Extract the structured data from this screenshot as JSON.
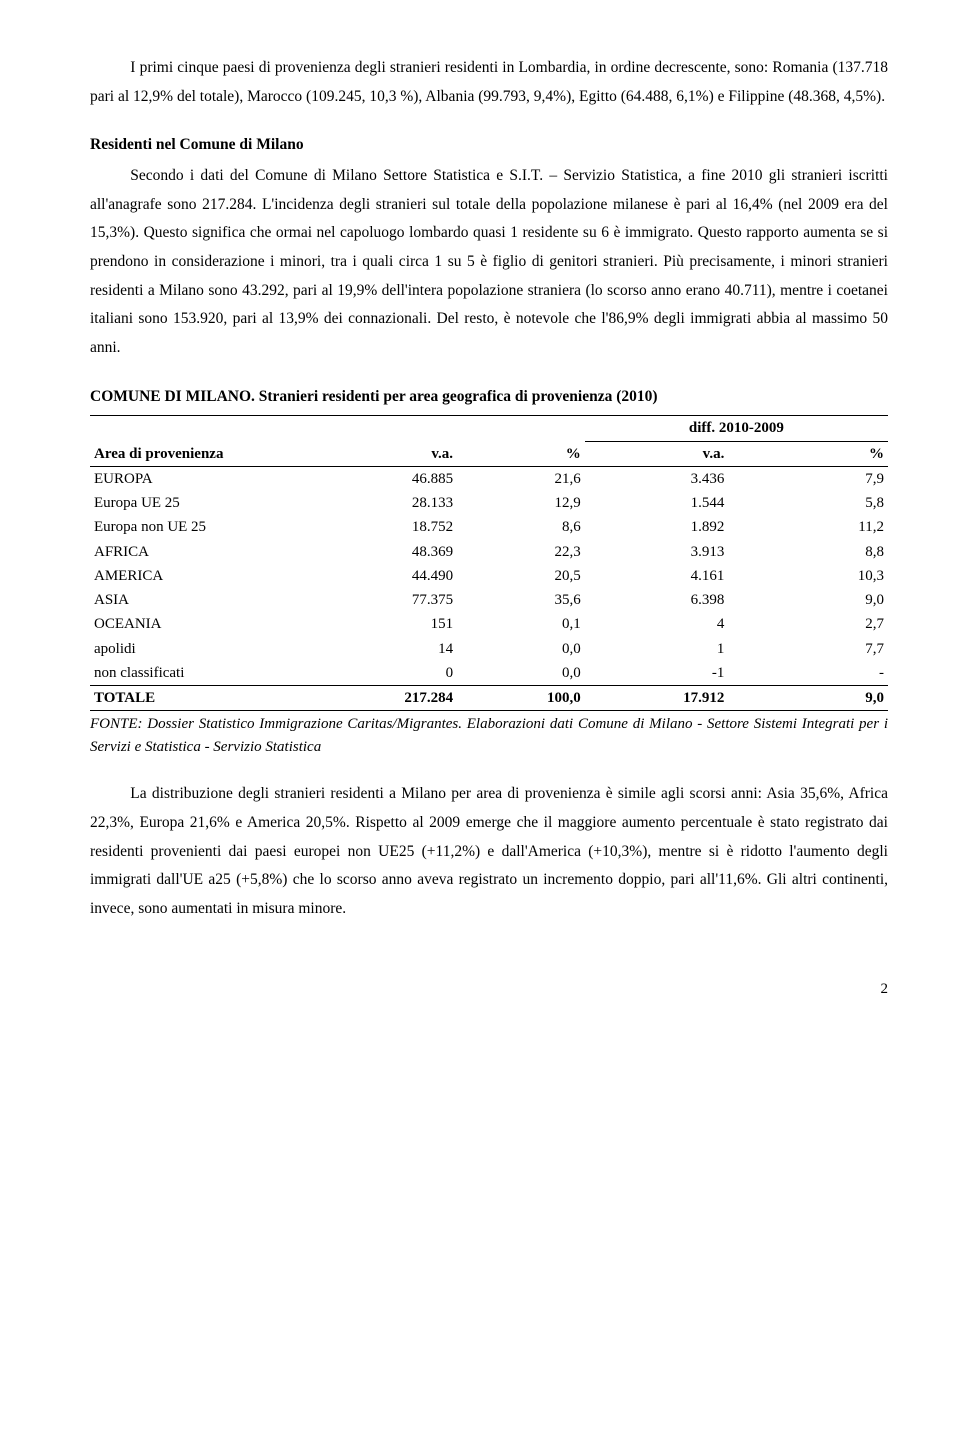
{
  "para_lead": "I primi cinque paesi di provenienza degli stranieri residenti in Lombardia, in ordine decrescente, sono: Romania (137.718 pari al 12,9% del totale), Marocco (109.245, 10,3 %), Albania (99.793, 9,4%), Egitto (64.488, 6,1%) e Filippine (48.368, 4,5%).",
  "section_heading": "Residenti nel Comune di Milano",
  "section_body": "Secondo i dati del Comune di Milano Settore Statistica e S.I.T. – Servizio Statistica, a fine 2010 gli stranieri iscritti all'anagrafe sono 217.284. L'incidenza degli stranieri sul totale della popolazione milanese è pari al 16,4% (nel 2009 era del 15,3%). Questo significa che ormai nel capoluogo lombardo quasi 1 residente su 6 è immigrato. Questo rapporto aumenta se si prendono in considerazione i minori, tra i quali circa 1 su 5 è figlio di genitori stranieri. Più precisamente, i minori stranieri residenti a Milano sono 43.292, pari al 19,9% dell'intera popolazione straniera (lo scorso anno erano 40.711), mentre i coetanei italiani sono 153.920, pari al 13,9% dei connazionali. Del resto, è notevole che l'86,9% degli immigrati abbia al massimo 50 anni.",
  "table": {
    "title": "COMUNE DI MILANO. Stranieri residenti per area geografica di provenienza (2010)",
    "headers": {
      "area": "Area di provenienza",
      "va": "v.a.",
      "pct": "%",
      "diff": "diff. 2010-2009",
      "diff_va": "v.a.",
      "diff_pct": "%"
    },
    "rows": [
      {
        "area": "EUROPA",
        "va": "46.885",
        "pct": "21,6",
        "dva": "3.436",
        "dpct": "7,9"
      },
      {
        "area": "Europa UE 25",
        "va": "28.133",
        "pct": "12,9",
        "dva": "1.544",
        "dpct": "5,8"
      },
      {
        "area": "Europa non UE  25",
        "va": "18.752",
        "pct": "8,6",
        "dva": "1.892",
        "dpct": "11,2"
      },
      {
        "area": "AFRICA",
        "va": "48.369",
        "pct": "22,3",
        "dva": "3.913",
        "dpct": "8,8"
      },
      {
        "area": "AMERICA",
        "va": "44.490",
        "pct": "20,5",
        "dva": "4.161",
        "dpct": "10,3"
      },
      {
        "area": "ASIA",
        "va": "77.375",
        "pct": "35,6",
        "dva": "6.398",
        "dpct": "9,0"
      },
      {
        "area": "OCEANIA",
        "va": "151",
        "pct": "0,1",
        "dva": "4",
        "dpct": "2,7"
      },
      {
        "area": "apolidi",
        "va": "14",
        "pct": "0,0",
        "dva": "1",
        "dpct": "7,7"
      },
      {
        "area": "non classificati",
        "va": "0",
        "pct": "0,0",
        "dva": "-1",
        "dpct": "-"
      }
    ],
    "total": {
      "area": "TOTALE",
      "va": "217.284",
      "pct": "100,0",
      "dva": "17.912",
      "dpct": "9,0"
    },
    "col_widths": [
      "30%",
      "16%",
      "16%",
      "18%",
      "20%"
    ]
  },
  "source": "FONTE: Dossier Statistico Immigrazione Caritas/Migrantes. Elaborazioni dati Comune di Milano - Settore Sistemi Integrati per i Servizi e Statistica - Servizio Statistica",
  "para_bottom": "La distribuzione degli stranieri residenti a Milano per area di provenienza è simile agli scorsi anni: Asia 35,6%, Africa 22,3%, Europa 21,6% e America 20,5%. Rispetto al 2009 emerge che il maggiore aumento percentuale è stato registrato dai residenti provenienti dai paesi europei non UE25 (+11,2%) e dall'America (+10,3%), mentre si è ridotto l'aumento degli immigrati dall'UE a25 (+5,8%) che lo scorso anno aveva registrato un incremento doppio, pari all'11,6%. Gli altri continenti, invece, sono aumentati in misura minore.",
  "page_number": "2"
}
